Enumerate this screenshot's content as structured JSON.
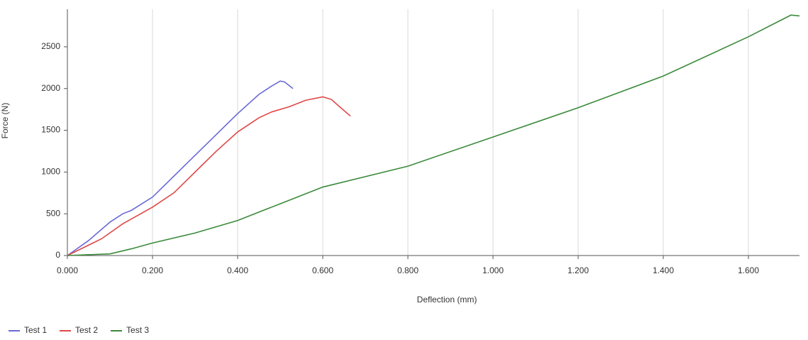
{
  "chart_data": {
    "type": "line",
    "x_label": "Deflection (mm)",
    "y_label": "Force (N)",
    "xlim": [
      0,
      1.72
    ],
    "ylim": [
      0,
      2950
    ],
    "xticks": [
      {
        "value": 0,
        "label": "0.000"
      },
      {
        "value": 0.2,
        "label": "0.200"
      },
      {
        "value": 0.4,
        "label": "0.400"
      },
      {
        "value": 0.6,
        "label": "0.600"
      },
      {
        "value": 0.8,
        "label": "0.800"
      },
      {
        "value": 1.0,
        "label": "1.000"
      },
      {
        "value": 1.2,
        "label": "1.200"
      },
      {
        "value": 1.4,
        "label": "1.400"
      },
      {
        "value": 1.6,
        "label": "1.600"
      }
    ],
    "yticks": [
      0,
      500,
      1000,
      1500,
      2000,
      2500
    ],
    "grid": true,
    "legend": "bottom-left",
    "series": [
      {
        "name": "Test 1",
        "color": "#6a6ad8",
        "x": [
          0,
          0.05,
          0.1,
          0.13,
          0.15,
          0.2,
          0.25,
          0.3,
          0.35,
          0.4,
          0.45,
          0.48,
          0.5,
          0.51,
          0.53
        ],
        "values": [
          0,
          180,
          400,
          500,
          540,
          700,
          950,
          1200,
          1450,
          1700,
          1930,
          2030,
          2090,
          2080,
          2000
        ]
      },
      {
        "name": "Test 2",
        "color": "#e04848",
        "x": [
          0,
          0.08,
          0.13,
          0.2,
          0.25,
          0.3,
          0.35,
          0.4,
          0.45,
          0.48,
          0.52,
          0.56,
          0.6,
          0.62,
          0.64,
          0.665
        ],
        "values": [
          0,
          200,
          380,
          580,
          750,
          1000,
          1250,
          1480,
          1650,
          1720,
          1780,
          1860,
          1900,
          1870,
          1780,
          1670
        ]
      },
      {
        "name": "Test 3",
        "color": "#3a8a3a",
        "x": [
          0,
          0.1,
          0.15,
          0.2,
          0.3,
          0.4,
          0.5,
          0.6,
          0.8,
          1.0,
          1.2,
          1.4,
          1.6,
          1.7,
          1.72
        ],
        "values": [
          0,
          20,
          80,
          150,
          270,
          420,
          620,
          820,
          1070,
          1420,
          1770,
          2150,
          2620,
          2880,
          2870
        ]
      }
    ]
  }
}
